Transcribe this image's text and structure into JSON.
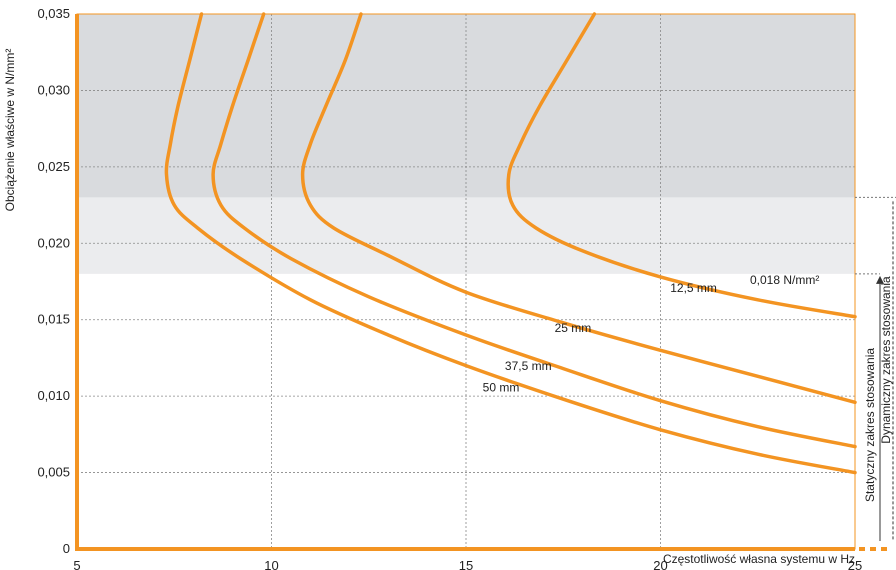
{
  "chart_data": {
    "type": "line",
    "title": "",
    "xlabel": "Częstotliwość własna systemu w Hz",
    "ylabel": "Obciążenie właściwe w N/mm²",
    "xlim": [
      5,
      25
    ],
    "ylim": [
      0,
      0.035
    ],
    "xticks": [
      "5",
      "10",
      "15",
      "20",
      "25"
    ],
    "yticks": [
      "0",
      "0,005",
      "0,010",
      "0,015",
      "0,020",
      "0,025",
      "0,030",
      "0,035"
    ],
    "grid": true,
    "colors": {
      "curve": "#f39422",
      "dynamic_band": "#d9dbde",
      "static_band": "#ebecee",
      "grid": "#888888"
    },
    "annotations": {
      "limit": "0,018 N/mm²",
      "static_range": "Statyczny zakres stosowania",
      "dynamic_range": "Dynamiczny zakres stosowania"
    },
    "bands": [
      {
        "name": "dynamic",
        "y_from": 0.023,
        "y_to": 0.035
      },
      {
        "name": "static",
        "y_from": 0.018,
        "y_to": 0.023
      }
    ],
    "series": [
      {
        "name": "12,5 mm",
        "x": [
          18.3,
          17.6,
          16.9,
          16.4,
          16.1,
          16.2,
          16.8,
          18.0,
          20.0,
          22.5,
          25.0
        ],
        "y": [
          0.035,
          0.032,
          0.029,
          0.0265,
          0.0245,
          0.0225,
          0.021,
          0.0195,
          0.0178,
          0.0163,
          0.0152
        ]
      },
      {
        "name": "25 mm",
        "x": [
          12.3,
          11.9,
          11.4,
          11.0,
          10.8,
          11.0,
          11.6,
          13.0,
          15.0,
          17.5,
          20.0,
          22.5,
          25.0
        ],
        "y": [
          0.035,
          0.032,
          0.029,
          0.0265,
          0.0245,
          0.0225,
          0.021,
          0.0192,
          0.0168,
          0.0148,
          0.013,
          0.0113,
          0.0096
        ]
      },
      {
        "name": "37,5 mm",
        "x": [
          9.8,
          9.4,
          9.0,
          8.7,
          8.5,
          8.7,
          9.3,
          10.5,
          12.5,
          15.0,
          17.5,
          20.0,
          22.5,
          25.0
        ],
        "y": [
          0.035,
          0.032,
          0.029,
          0.0265,
          0.0245,
          0.0225,
          0.021,
          0.019,
          0.0165,
          0.014,
          0.0118,
          0.0097,
          0.008,
          0.0067
        ]
      },
      {
        "name": "50 mm",
        "x": [
          8.2,
          7.9,
          7.6,
          7.4,
          7.3,
          7.5,
          8.1,
          9.2,
          11.0,
          13.0,
          15.0,
          17.5,
          20.0,
          22.5,
          25.0
        ],
        "y": [
          0.035,
          0.032,
          0.029,
          0.0265,
          0.0245,
          0.0225,
          0.021,
          0.019,
          0.0163,
          0.014,
          0.012,
          0.0098,
          0.0078,
          0.0062,
          0.005
        ]
      }
    ]
  }
}
